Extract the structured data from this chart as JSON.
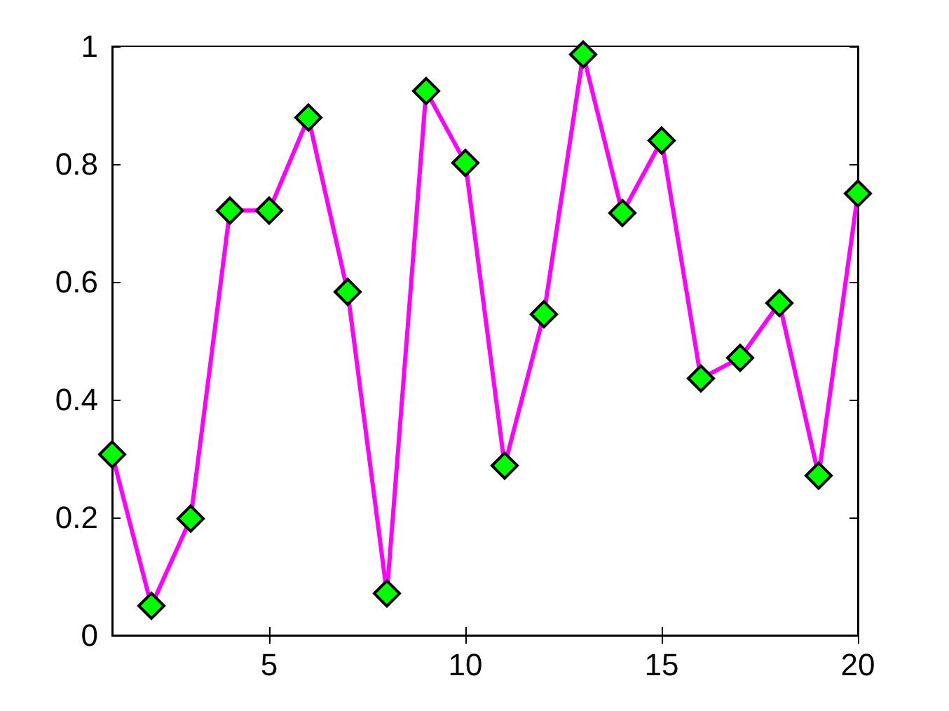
{
  "chart_data": {
    "type": "line",
    "x": [
      1,
      2,
      3,
      4,
      5,
      6,
      7,
      8,
      9,
      10,
      11,
      12,
      13,
      14,
      15,
      16,
      17,
      18,
      19,
      20
    ],
    "series": [
      {
        "color": "#ff00ff",
        "values": [
          0.307,
          0.05,
          0.198,
          0.721,
          0.721,
          0.879,
          0.583,
          0.071,
          0.924,
          0.802,
          0.288,
          0.545,
          0.986,
          0.717,
          0.84,
          0.436,
          0.471,
          0.564,
          0.271,
          0.75
        ],
        "colors": [
          "#00ff00",
          "#00ff00",
          "#00ff00",
          "#00ff00",
          "#00ff00",
          "#00ff00",
          "#00ff00",
          "#00ff00",
          "#00ff00",
          "#00ff00",
          "#00ff00",
          "#00ff00",
          "#00ff00",
          "#00ff00",
          "#00ff00",
          "#00ff00",
          "#00ff00",
          "#00ff00",
          "#00ff00",
          "#00ff00"
        ]
      }
    ],
    "marker": "diamond",
    "line_style": "solid",
    "grid": false,
    "xlim": [
      1,
      20
    ],
    "xticks": [
      5,
      10,
      15,
      20
    ],
    "ylim": [
      0,
      1
    ],
    "yticks": [
      0,
      0.2,
      0.4,
      0.6,
      0.8,
      1
    ]
  }
}
